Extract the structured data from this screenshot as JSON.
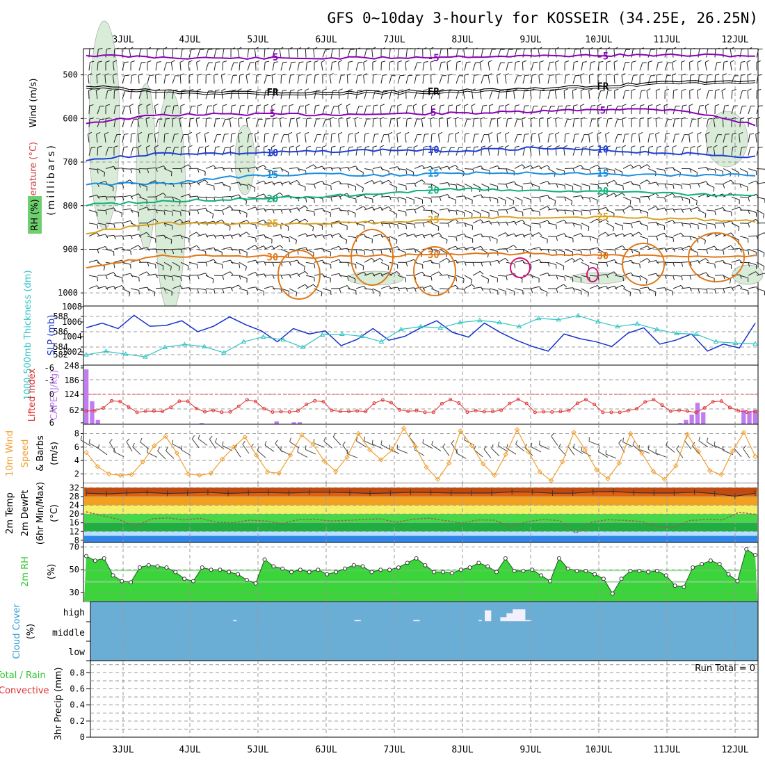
{
  "title": "GFS 0~10day 3-hourly for KOSSEIR (34.25E, 26.25N)",
  "colors": {
    "purple": "#8a00b8",
    "black": "#000000",
    "blue_dark": "#1e3fd6",
    "blue_light": "#1a8fe0",
    "teal": "#10b07a",
    "gold": "#d8a020",
    "orange": "#e07818",
    "magenta": "#d0107a",
    "rh_fill": "#d8ecd8",
    "slp": "#1431c8",
    "thickness": "#2ec4c4",
    "cape": "#c07cf0",
    "lifted": "#e03030",
    "wind10": "#f0a030",
    "cloud": "#6aaed6",
    "rh2m": "#30c830"
  },
  "dates": [
    "3JUL",
    "4JUL",
    "5JUL",
    "6JUL",
    "7JUL",
    "8JUL",
    "9JUL",
    "10JUL",
    "11JUL",
    "12JUL"
  ],
  "labels": {
    "wind": "Wind (m/s)",
    "temperature": "Temperature (°C)",
    "rh": "RH (%)",
    "millibars": "(millibars)",
    "thickness": "1000-500mb Thickness (dm)",
    "slp": "SLP (mb)",
    "lifted": "Lifted Index",
    "cape": "CAPE (J/kg)",
    "wind10_a": "10m Wind",
    "wind10_b": "Speed",
    "wind10_c": "& Barbs",
    "wind10_unit": "(m/s)",
    "t2_a": "2m Temp",
    "t2_b": "2m DewPt",
    "t2_c": "(6hr Min/Max)",
    "t2_unit": "(°C)",
    "rh2_a": "2m RH",
    "rh2_unit": "(%)",
    "cloud_a": "Cloud Cover",
    "cloud_unit": "(%)",
    "cloud_levels": [
      "high",
      "middle",
      "low"
    ],
    "precip_a": "Total / Rain",
    "precip_b": "Convective",
    "precip_c": "3hr Precip (mm)",
    "run_total": "Run Total = 0"
  },
  "chart_data": [
    {
      "name": "upper_air",
      "type": "line",
      "y_ticks": [
        "500",
        "600",
        "700",
        "800",
        "900",
        "1000"
      ],
      "ylim": [
        1030,
        440
      ],
      "contour_labels": [
        "-5",
        "FR",
        "5",
        "10",
        "15",
        "20",
        "25",
        "30"
      ],
      "series": [
        {
          "name": "-5",
          "values": [
            455,
            460,
            462,
            462,
            461,
            458,
            457,
            455,
            455,
            456
          ]
        },
        {
          "name": "FR",
          "values": [
            525,
            536,
            538,
            540,
            538,
            535,
            532,
            524,
            515,
            515
          ]
        },
        {
          "name": "5",
          "values": [
            610,
            592,
            590,
            591,
            590,
            588,
            585,
            578,
            580,
            615
          ]
        },
        {
          "name": "10",
          "values": [
            695,
            680,
            680,
            676,
            672,
            674,
            668,
            674,
            680,
            688
          ]
        },
        {
          "name": "15",
          "values": [
            750,
            750,
            734,
            728,
            730,
            726,
            724,
            728,
            730,
            730
          ]
        },
        {
          "name": "20",
          "values": [
            798,
            790,
            785,
            780,
            772,
            762,
            765,
            768,
            773,
            778
          ]
        },
        {
          "name": "25",
          "values": [
            862,
            840,
            842,
            842,
            838,
            830,
            826,
            826,
            830,
            836
          ]
        },
        {
          "name": "30",
          "values": [
            940,
            915,
            915,
            918,
            915,
            910,
            910,
            915,
            915,
            915
          ]
        }
      ]
    },
    {
      "name": "slp_thickness",
      "type": "line",
      "y_ticks_left": [
        "588",
        "586",
        "584",
        "582"
      ],
      "y_ticks_right": [
        "1008",
        "1006",
        "1004",
        "1002"
      ],
      "series": [
        {
          "name": "SLP",
          "values": [
            1005.6,
            1006.2,
            1005.5,
            1007.2,
            1005.8,
            1005.9,
            1006.5,
            1005.1,
            1005.8,
            1007.0,
            1006.0,
            1005.2,
            1003.8,
            1005.5,
            1004.8,
            1005.2,
            1003.3,
            1004.1,
            1005.5,
            1004.0,
            1004.5,
            1005.6,
            1006.5,
            1005.0,
            1004.4,
            1006.2,
            1005.0,
            1004.0,
            1003.2,
            1002.6,
            1004.8,
            1004.2,
            1003.8,
            1003.2,
            1004.9,
            1005.6,
            1003.5,
            1004.0,
            1004.8,
            1002.6,
            1003.5,
            1003.0,
            1006.2
          ]
        },
        {
          "name": "Thickness",
          "values": [
            582.1,
            582.6,
            582.2,
            581.8,
            583.2,
            583.6,
            583.3,
            582.4,
            584.0,
            584.7,
            584.3,
            583.2,
            585.0,
            585.1,
            584.8,
            584.0,
            585.8,
            586.2,
            586.0,
            586.8,
            587.1,
            586.8,
            586.2,
            587.4,
            587.2,
            587.8,
            586.9,
            586.2,
            586.6,
            585.8,
            585.2,
            585.1,
            584.0,
            583.8,
            583.7
          ]
        }
      ]
    },
    {
      "name": "cape_lifted",
      "type": "bar",
      "y_ticks_lifted": [
        "-6",
        "-3",
        "0",
        "3",
        "6"
      ],
      "y_ticks_cape": [
        "248",
        "186",
        "124",
        "62"
      ],
      "cape_values": [
        230,
        96,
        18,
        0,
        0,
        0,
        0,
        0,
        0,
        0,
        0,
        0,
        0,
        0,
        0,
        0,
        0,
        0,
        0,
        0,
        5,
        0,
        0,
        0,
        0,
        0,
        0,
        0,
        0,
        0,
        0,
        0,
        0,
        12,
        0,
        0,
        8,
        8,
        0,
        0,
        0,
        0,
        0,
        0,
        0,
        0,
        0,
        0,
        0,
        0,
        0,
        0,
        0,
        0,
        0,
        0,
        0,
        0,
        0,
        0,
        0,
        0,
        0,
        0,
        0,
        0,
        0,
        0,
        0,
        0,
        0,
        0,
        0,
        0,
        0,
        0,
        0,
        0,
        0,
        0,
        0,
        0,
        0,
        0,
        0,
        0,
        0,
        0,
        0,
        0,
        0,
        0,
        0,
        0,
        0,
        0,
        0,
        0,
        0,
        0,
        0,
        0,
        0,
        5,
        18,
        40,
        90,
        50,
        0,
        0,
        0,
        0,
        0,
        0,
        60,
        55,
        60
      ]
    },
    {
      "name": "wind10",
      "type": "line",
      "y_ticks": [
        "8",
        "6",
        "4",
        "2"
      ],
      "series": [
        {
          "name": "10m Wind Speed",
          "values": [
            5.2,
            3.1,
            2.0,
            1.8,
            1.9,
            3.8,
            6.2,
            7.6,
            5.1,
            2.0,
            1.8,
            2.1,
            4.2,
            6.0,
            7.5,
            4.8,
            2.3,
            2.1,
            4.8,
            7.8,
            6.4,
            3.9,
            2.4,
            4.5,
            8.0,
            5.6,
            4.1,
            5.6,
            8.8,
            6.1,
            3.0,
            1.2,
            3.6,
            8.4,
            6.2,
            3.5,
            1.8,
            4.9,
            8.6,
            5.3,
            2.3,
            1.0,
            3.8,
            8.2,
            5.6,
            2.6,
            1.3,
            3.6,
            8.0,
            5.1,
            2.4,
            1.2,
            3.2,
            7.9,
            5.3,
            2.5,
            1.9,
            5.4,
            8.2,
            4.6
          ]
        }
      ]
    },
    {
      "name": "temp2m",
      "type": "area",
      "y_ticks": [
        "32",
        "28",
        "24",
        "20",
        "16",
        "12",
        "8"
      ],
      "series": [
        {
          "name": "2m Temp",
          "values": [
            29.5,
            29.2,
            29.6,
            29.8,
            29.4,
            29.6,
            29.9,
            29.4,
            29.7,
            29.8,
            29.6,
            29.9,
            30.0,
            29.7,
            29.4,
            29.6,
            29.9,
            29.8,
            29.6,
            29.6,
            29.6,
            30.1,
            30.0,
            29.5,
            29.5,
            30.1,
            30.3,
            29.7,
            29.6,
            29.6,
            30.0,
            29.3,
            28.1,
            29.5
          ]
        },
        {
          "name": "2m DewPt",
          "values": [
            21.0,
            19.2,
            17.5,
            14.2,
            17.8,
            18.2,
            17.3,
            18.0,
            16.2,
            16.0,
            17.2,
            16.8,
            15.6,
            17.4,
            17.6,
            16.8,
            17.1,
            17.5,
            17.8,
            16.2,
            17.6,
            18.1,
            17.0,
            15.8,
            17.3,
            17.2,
            14.2,
            16.4,
            17.5,
            17.0,
            11.2,
            16.3,
            17.4,
            17.1,
            16.6,
            14.2,
            13.8,
            17.0,
            17.5,
            17.3,
            20.8,
            19.8
          ]
        }
      ]
    },
    {
      "name": "rh2m",
      "type": "area",
      "y_ticks": [
        "70",
        "50",
        "30"
      ],
      "series": [
        {
          "name": "2m RH",
          "values": [
            62,
            58,
            60,
            45,
            40,
            39,
            52,
            54,
            53,
            52,
            48,
            42,
            40,
            52,
            50,
            50,
            48,
            46,
            41,
            38,
            59,
            53,
            51,
            48,
            50,
            48,
            50,
            46,
            48,
            51,
            54,
            53,
            48,
            50,
            50,
            52,
            56,
            60,
            54,
            48,
            48,
            47,
            50,
            52,
            56,
            53,
            48,
            60,
            49,
            49,
            50,
            45,
            40,
            60,
            51,
            49,
            49,
            46,
            42,
            29,
            42,
            49,
            49,
            48,
            49,
            45,
            36,
            35,
            52,
            55,
            58,
            55,
            46,
            40,
            68,
            63
          ]
        }
      ]
    },
    {
      "name": "cloud",
      "type": "bar",
      "high_cloud_values": [
        0,
        0,
        0,
        0,
        0,
        0,
        0,
        0,
        0,
        0,
        0,
        0,
        0,
        0,
        0,
        0,
        0,
        0,
        0,
        0,
        0,
        0,
        0,
        0,
        0,
        0,
        0,
        0,
        0,
        0,
        0,
        0,
        0,
        0,
        0,
        0,
        0,
        0,
        0,
        0,
        0,
        0,
        0,
        0,
        0,
        0,
        5,
        0,
        0,
        0,
        0,
        0,
        0,
        0,
        0,
        0,
        0,
        0,
        0,
        0,
        0,
        0,
        0,
        0,
        0,
        0,
        0,
        0,
        0,
        0,
        0,
        0,
        0,
        0,
        0,
        0,
        0,
        0,
        0,
        0,
        0,
        0,
        0,
        0,
        0,
        5,
        5,
        0,
        0,
        0,
        0,
        0,
        0,
        0,
        0,
        0,
        0,
        0,
        0,
        0,
        0,
        0,
        0,
        0,
        5,
        5,
        0,
        0,
        0,
        0,
        0,
        0,
        0,
        0,
        0,
        0,
        0,
        0,
        0,
        0,
        0,
        0,
        0,
        0,
        0,
        5,
        0,
        55,
        55,
        0,
        0,
        0,
        20,
        20,
        40,
        40,
        60,
        60,
        60,
        60,
        5,
        5,
        0,
        0,
        0,
        0,
        0,
        0,
        0,
        0,
        0,
        0,
        0,
        0,
        0,
        0,
        0,
        0,
        0,
        0,
        0,
        0,
        0,
        0,
        0,
        0,
        0,
        0,
        0,
        0,
        0,
        0,
        0,
        0,
        0,
        0,
        0,
        0,
        0,
        0,
        0,
        0,
        0,
        0,
        0,
        0,
        0,
        0,
        0,
        0,
        0,
        0,
        0,
        0,
        0,
        0,
        0,
        0,
        0,
        0,
        0,
        0,
        0,
        0,
        0,
        0,
        0,
        0,
        0,
        0,
        0,
        0,
        0,
        0,
        0
      ]
    },
    {
      "name": "precip",
      "type": "bar",
      "y_ticks": [
        "0.8",
        "0.6",
        "0.4",
        "0.2",
        "0"
      ],
      "ylim": [
        0,
        0.95
      ],
      "values": []
    }
  ]
}
